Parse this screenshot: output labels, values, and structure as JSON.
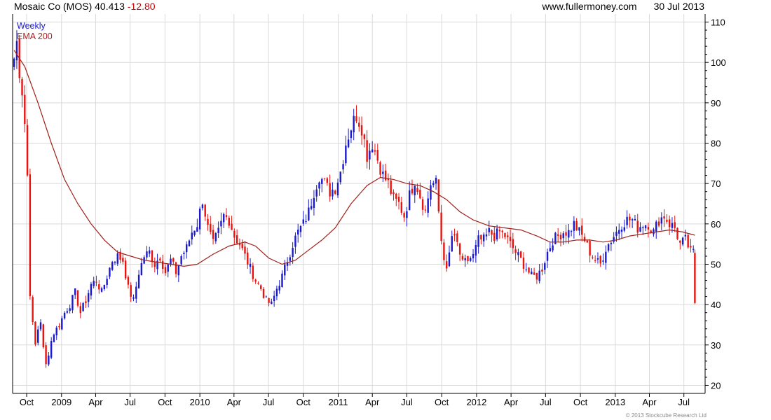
{
  "header": {
    "ticker": "Mosaic Co (MOS) 40.413",
    "change": "-12.80",
    "website": "www.fullermoney.com",
    "date": "30 Jul 2013"
  },
  "legend": {
    "interval": "Weekly",
    "ema": "EMA 200"
  },
  "copyright": "© 2013 Stockcube Research Ltd",
  "colors": {
    "up": "#1a1acc",
    "down": "#e8130e",
    "ema": "#a0201a",
    "grid": "#d9d9d9"
  },
  "chart_data": {
    "type": "candlestick",
    "title": "",
    "xlabel": "",
    "ylabel": "",
    "ylim": [
      18,
      112
    ],
    "y_ticks": [
      20,
      30,
      40,
      50,
      60,
      70,
      80,
      90,
      100,
      110
    ],
    "grid": true,
    "x_ticks": [
      {
        "label": "Oct",
        "date": "2008-10-01"
      },
      {
        "label": "2009",
        "date": "2009-01-01"
      },
      {
        "label": "Apr",
        "date": "2009-04-01"
      },
      {
        "label": "Jul",
        "date": "2009-07-01"
      },
      {
        "label": "Oct",
        "date": "2009-10-01"
      },
      {
        "label": "2010",
        "date": "2010-01-01"
      },
      {
        "label": "Apr",
        "date": "2010-04-01"
      },
      {
        "label": "Jul",
        "date": "2010-07-01"
      },
      {
        "label": "Oct",
        "date": "2010-10-01"
      },
      {
        "label": "2011",
        "date": "2011-01-01"
      },
      {
        "label": "Apr",
        "date": "2011-04-01"
      },
      {
        "label": "Jul",
        "date": "2011-07-01"
      },
      {
        "label": "Oct",
        "date": "2011-10-01"
      },
      {
        "label": "2012",
        "date": "2012-01-01"
      },
      {
        "label": "Apr",
        "date": "2012-04-01"
      },
      {
        "label": "Jul",
        "date": "2012-07-01"
      },
      {
        "label": "Oct",
        "date": "2012-10-01"
      },
      {
        "label": "2013",
        "date": "2013-01-01"
      },
      {
        "label": "Apr",
        "date": "2013-04-01"
      },
      {
        "label": "Jul",
        "date": "2013-07-01"
      }
    ],
    "price_path": [
      [
        "2008-08-29",
        101
      ],
      [
        "2008-09-05",
        105
      ],
      [
        "2008-09-12",
        98
      ],
      [
        "2008-09-19",
        93
      ],
      [
        "2008-09-26",
        85
      ],
      [
        "2008-10-03",
        72
      ],
      [
        "2008-10-10",
        43
      ],
      [
        "2008-10-17",
        35
      ],
      [
        "2008-10-24",
        30
      ],
      [
        "2008-10-31",
        34
      ],
      [
        "2008-11-07",
        36
      ],
      [
        "2008-11-14",
        29
      ],
      [
        "2008-11-21",
        25
      ],
      [
        "2008-11-28",
        28
      ],
      [
        "2008-12-05",
        31
      ],
      [
        "2008-12-12",
        33
      ],
      [
        "2008-12-19",
        34
      ],
      [
        "2008-12-26",
        35
      ],
      [
        "2009-01-09",
        38
      ],
      [
        "2009-01-23",
        40
      ],
      [
        "2009-02-06",
        43
      ],
      [
        "2009-02-20",
        38
      ],
      [
        "2009-03-06",
        41
      ],
      [
        "2009-03-20",
        45
      ],
      [
        "2009-04-03",
        46
      ],
      [
        "2009-04-17",
        43
      ],
      [
        "2009-05-01",
        47
      ],
      [
        "2009-05-15",
        51
      ],
      [
        "2009-05-29",
        52
      ],
      [
        "2009-06-12",
        51
      ],
      [
        "2009-06-26",
        44
      ],
      [
        "2009-07-10",
        41
      ],
      [
        "2009-07-24",
        48
      ],
      [
        "2009-08-07",
        52
      ],
      [
        "2009-08-21",
        53
      ],
      [
        "2009-09-04",
        50
      ],
      [
        "2009-09-18",
        52
      ],
      [
        "2009-10-02",
        48
      ],
      [
        "2009-10-16",
        51
      ],
      [
        "2009-10-30",
        48
      ],
      [
        "2009-11-13",
        52
      ],
      [
        "2009-11-27",
        54
      ],
      [
        "2009-12-11",
        58
      ],
      [
        "2009-12-25",
        60
      ],
      [
        "2010-01-08",
        66
      ],
      [
        "2010-01-22",
        59
      ],
      [
        "2010-02-05",
        55
      ],
      [
        "2010-02-19",
        58
      ],
      [
        "2010-03-05",
        62
      ],
      [
        "2010-03-19",
        61
      ],
      [
        "2010-04-02",
        57
      ],
      [
        "2010-04-16",
        55
      ],
      [
        "2010-04-30",
        52
      ],
      [
        "2010-05-14",
        49
      ],
      [
        "2010-05-28",
        46
      ],
      [
        "2010-06-11",
        44
      ],
      [
        "2010-06-25",
        41
      ],
      [
        "2010-07-09",
        40
      ],
      [
        "2010-07-23",
        44
      ],
      [
        "2010-08-06",
        47
      ],
      [
        "2010-08-20",
        51
      ],
      [
        "2010-09-03",
        55
      ],
      [
        "2010-09-17",
        58
      ],
      [
        "2010-10-01",
        60
      ],
      [
        "2010-10-15",
        63
      ],
      [
        "2010-10-29",
        68
      ],
      [
        "2010-11-12",
        72
      ],
      [
        "2010-11-26",
        70
      ],
      [
        "2010-12-10",
        68
      ],
      [
        "2010-12-24",
        69
      ],
      [
        "2011-01-07",
        73
      ],
      [
        "2011-01-21",
        80
      ],
      [
        "2011-02-04",
        84
      ],
      [
        "2011-02-18",
        87
      ],
      [
        "2011-03-04",
        84
      ],
      [
        "2011-03-18",
        77
      ],
      [
        "2011-04-01",
        80
      ],
      [
        "2011-04-15",
        76
      ],
      [
        "2011-04-29",
        72
      ],
      [
        "2011-05-13",
        70
      ],
      [
        "2011-05-27",
        66
      ],
      [
        "2011-06-10",
        65
      ],
      [
        "2011-06-24",
        62
      ],
      [
        "2011-07-08",
        67
      ],
      [
        "2011-07-22",
        71
      ],
      [
        "2011-08-05",
        67
      ],
      [
        "2011-08-19",
        63
      ],
      [
        "2011-09-02",
        70
      ],
      [
        "2011-09-16",
        70
      ],
      [
        "2011-09-30",
        56
      ],
      [
        "2011-10-14",
        48
      ],
      [
        "2011-10-28",
        57
      ],
      [
        "2011-11-11",
        55
      ],
      [
        "2011-11-25",
        50
      ],
      [
        "2011-12-09",
        51
      ],
      [
        "2011-12-23",
        52
      ],
      [
        "2012-01-06",
        56
      ],
      [
        "2012-01-20",
        56
      ],
      [
        "2012-02-03",
        58
      ],
      [
        "2012-02-17",
        57
      ],
      [
        "2012-03-02",
        58
      ],
      [
        "2012-03-16",
        57
      ],
      [
        "2012-03-30",
        55
      ],
      [
        "2012-04-13",
        53
      ],
      [
        "2012-04-27",
        51
      ],
      [
        "2012-05-11",
        49
      ],
      [
        "2012-05-25",
        47
      ],
      [
        "2012-06-08",
        47
      ],
      [
        "2012-06-22",
        49
      ],
      [
        "2012-07-06",
        53
      ],
      [
        "2012-07-20",
        56
      ],
      [
        "2012-08-03",
        57
      ],
      [
        "2012-08-17",
        58
      ],
      [
        "2012-08-31",
        58
      ],
      [
        "2012-09-14",
        60
      ],
      [
        "2012-09-28",
        58
      ],
      [
        "2012-10-12",
        56
      ],
      [
        "2012-10-26",
        53
      ],
      [
        "2012-11-09",
        51
      ],
      [
        "2012-11-23",
        50
      ],
      [
        "2012-12-07",
        54
      ],
      [
        "2012-12-21",
        56
      ],
      [
        "2013-01-04",
        58
      ],
      [
        "2013-01-18",
        60
      ],
      [
        "2013-02-01",
        61
      ],
      [
        "2013-02-15",
        61
      ],
      [
        "2013-03-01",
        59
      ],
      [
        "2013-03-15",
        60
      ],
      [
        "2013-03-29",
        60
      ],
      [
        "2013-04-12",
        58
      ],
      [
        "2013-04-26",
        61
      ],
      [
        "2013-05-10",
        62
      ],
      [
        "2013-05-24",
        60
      ],
      [
        "2013-06-07",
        59
      ],
      [
        "2013-06-21",
        55
      ],
      [
        "2013-07-05",
        56
      ],
      [
        "2013-07-19",
        53
      ],
      [
        "2013-07-26",
        53
      ],
      [
        "2013-07-30",
        40.4
      ]
    ],
    "ema_200": [
      [
        "2008-08-29",
        103
      ],
      [
        "2008-09-26",
        99
      ],
      [
        "2008-10-31",
        90
      ],
      [
        "2008-12-05",
        80
      ],
      [
        "2009-01-09",
        71
      ],
      [
        "2009-02-13",
        65
      ],
      [
        "2009-03-20",
        60
      ],
      [
        "2009-04-24",
        56
      ],
      [
        "2009-05-29",
        53
      ],
      [
        "2009-07-03",
        52
      ],
      [
        "2009-08-07",
        51
      ],
      [
        "2009-09-11",
        50.5
      ],
      [
        "2009-10-16",
        50
      ],
      [
        "2009-11-20",
        49.5
      ],
      [
        "2009-12-25",
        50
      ],
      [
        "2010-02-05",
        52.5
      ],
      [
        "2010-03-19",
        54.5
      ],
      [
        "2010-04-30",
        55.5
      ],
      [
        "2010-05-28",
        54.5
      ],
      [
        "2010-07-02",
        51.5
      ],
      [
        "2010-08-06",
        50
      ],
      [
        "2010-09-10",
        51
      ],
      [
        "2010-10-15",
        53.5
      ],
      [
        "2010-11-19",
        56
      ],
      [
        "2010-12-24",
        59
      ],
      [
        "2011-02-04",
        65
      ],
      [
        "2011-03-18",
        69.5
      ],
      [
        "2011-04-22",
        71.5
      ],
      [
        "2011-05-27",
        71
      ],
      [
        "2011-07-01",
        70
      ],
      [
        "2011-08-05",
        69.5
      ],
      [
        "2011-09-09",
        68
      ],
      [
        "2011-10-14",
        66
      ],
      [
        "2011-11-18",
        63
      ],
      [
        "2011-12-23",
        61
      ],
      [
        "2012-02-03",
        59.5
      ],
      [
        "2012-03-16",
        59
      ],
      [
        "2012-04-27",
        58.5
      ],
      [
        "2012-06-08",
        57
      ],
      [
        "2012-07-13",
        55.5
      ],
      [
        "2012-08-17",
        55.5
      ],
      [
        "2012-09-21",
        56
      ],
      [
        "2012-10-26",
        56
      ],
      [
        "2012-11-30",
        55.5
      ],
      [
        "2013-01-04",
        56
      ],
      [
        "2013-02-08",
        57
      ],
      [
        "2013-03-15",
        57.5
      ],
      [
        "2013-04-19",
        58
      ],
      [
        "2013-05-24",
        58.5
      ],
      [
        "2013-06-28",
        58
      ],
      [
        "2013-07-30",
        57.2
      ]
    ]
  }
}
